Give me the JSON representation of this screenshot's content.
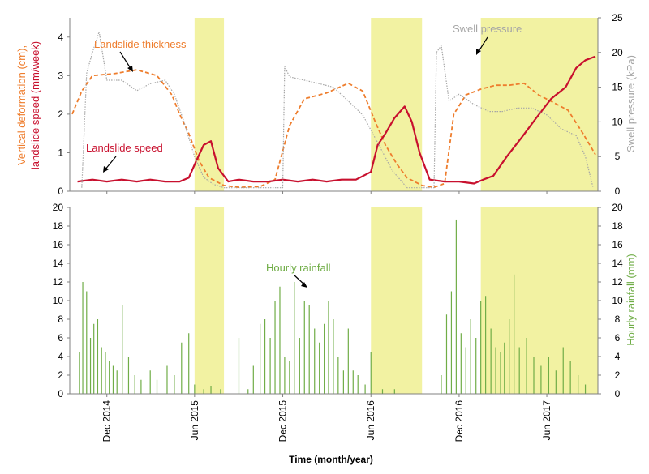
{
  "chart_data": [
    {
      "type": "line",
      "panel": "top",
      "xlabel": "Time (month/year)",
      "ylabel_left_part1": "Vertical deformation (cm),",
      "ylabel_left_part2": "landslide speed (mm/week)",
      "ylabel_right": "Swell pressure (kPa)",
      "ylim_left": [
        0,
        4.5
      ],
      "ylim_right": [
        0,
        25
      ],
      "yticks_left": [
        "0",
        "1",
        "2",
        "3",
        "4"
      ],
      "yticks_right": [
        "0",
        "5",
        "10",
        "15",
        "20",
        "25"
      ],
      "xticks": [
        "Dec 2014",
        "Jun 2015",
        "Dec 2015",
        "Jun 2016",
        "Dec 2016",
        "Jun 2017"
      ],
      "xtick_dates": [
        "2014-12-01",
        "2015-06-01",
        "2015-12-01",
        "2016-06-01",
        "2016-12-01",
        "2017-06-01"
      ],
      "xlim": [
        "2014-09-15",
        "2017-09-15"
      ],
      "shaded_periods": [
        [
          "2015-06-01",
          "2015-08-01"
        ],
        [
          "2016-06-01",
          "2016-09-15"
        ],
        [
          "2017-01-15",
          "2017-09-15"
        ]
      ],
      "shade_color": "#f2f2a2",
      "annotations": [
        "Landslide thickness",
        "Landslide speed",
        "Swell pressure"
      ],
      "series": [
        {
          "name": "Landslide thickness",
          "color": "#ee7d2d",
          "axis": "left",
          "style": "dashed",
          "x": [
            "2014-09-20",
            "2014-10-10",
            "2014-11-01",
            "2014-12-15",
            "2015-02-01",
            "2015-03-15",
            "2015-04-15",
            "2015-05-01",
            "2015-05-20",
            "2015-06-10",
            "2015-07-01",
            "2015-08-01",
            "2015-09-01",
            "2015-10-15",
            "2015-11-15",
            "2015-12-15",
            "2016-01-15",
            "2016-03-01",
            "2016-04-15",
            "2016-05-15",
            "2016-06-10",
            "2016-07-01",
            "2016-07-25",
            "2016-08-15",
            "2016-09-15",
            "2016-10-10",
            "2016-11-01",
            "2016-11-20",
            "2016-12-15",
            "2017-01-15",
            "2017-02-15",
            "2017-03-15",
            "2017-04-15",
            "2017-05-15",
            "2017-06-15",
            "2017-07-15",
            "2017-08-15",
            "2017-09-10"
          ],
          "y": [
            2.0,
            2.6,
            3.0,
            3.05,
            3.15,
            3.0,
            2.5,
            2.0,
            1.5,
            0.8,
            0.35,
            0.15,
            0.1,
            0.12,
            0.3,
            1.7,
            2.4,
            2.55,
            2.8,
            2.6,
            1.8,
            1.2,
            0.7,
            0.35,
            0.15,
            0.1,
            0.2,
            2.0,
            2.5,
            2.65,
            2.75,
            2.75,
            2.8,
            2.5,
            2.3,
            2.1,
            1.5,
            0.95
          ]
        },
        {
          "name": "Landslide speed",
          "color": "#c8102e",
          "axis": "left",
          "style": "solid",
          "x": [
            "2014-10-01",
            "2014-11-01",
            "2014-12-01",
            "2015-01-01",
            "2015-02-01",
            "2015-03-01",
            "2015-04-01",
            "2015-05-01",
            "2015-05-20",
            "2015-06-05",
            "2015-06-20",
            "2015-07-05",
            "2015-07-20",
            "2015-08-10",
            "2015-09-01",
            "2015-10-01",
            "2015-11-01",
            "2015-12-01",
            "2016-01-01",
            "2016-02-01",
            "2016-03-01",
            "2016-04-01",
            "2016-05-01",
            "2016-06-01",
            "2016-06-15",
            "2016-07-01",
            "2016-07-20",
            "2016-08-10",
            "2016-08-25",
            "2016-09-10",
            "2016-10-01",
            "2016-11-01",
            "2016-12-01",
            "2017-01-01",
            "2017-01-20",
            "2017-02-10",
            "2017-03-10",
            "2017-04-10",
            "2017-05-10",
            "2017-06-10",
            "2017-07-10",
            "2017-08-01",
            "2017-08-20",
            "2017-09-10"
          ],
          "y": [
            0.25,
            0.3,
            0.25,
            0.3,
            0.25,
            0.3,
            0.25,
            0.25,
            0.35,
            0.8,
            1.2,
            1.3,
            0.6,
            0.25,
            0.3,
            0.25,
            0.25,
            0.3,
            0.25,
            0.3,
            0.25,
            0.3,
            0.3,
            0.5,
            1.2,
            1.5,
            1.9,
            2.2,
            1.8,
            1.0,
            0.3,
            0.25,
            0.25,
            0.2,
            0.3,
            0.4,
            0.9,
            1.4,
            1.9,
            2.4,
            2.7,
            3.2,
            3.4,
            3.5
          ]
        },
        {
          "name": "Swell pressure",
          "color": "#a6a6a6",
          "axis": "right",
          "style": "dotted",
          "x": [
            "2014-10-10",
            "2014-10-20",
            "2014-11-01",
            "2014-11-15",
            "2014-12-01",
            "2015-01-01",
            "2015-02-01",
            "2015-03-01",
            "2015-04-01",
            "2015-04-20",
            "2015-05-10",
            "2015-06-01",
            "2015-06-20",
            "2015-07-10",
            "2015-08-01",
            "2015-10-01",
            "2015-12-01",
            "2015-12-05",
            "2015-12-15",
            "2016-01-15",
            "2016-02-15",
            "2016-03-15",
            "2016-04-15",
            "2016-05-15",
            "2016-06-15",
            "2016-07-15",
            "2016-08-15",
            "2016-09-10",
            "2016-09-25",
            "2016-10-10",
            "2016-10-15",
            "2016-10-25",
            "2016-11-10",
            "2016-12-01",
            "2017-01-01",
            "2017-02-01",
            "2017-03-01",
            "2017-04-01",
            "2017-05-01",
            "2017-06-01",
            "2017-07-01",
            "2017-08-01",
            "2017-08-20",
            "2017-09-05"
          ],
          "y": [
            0.5,
            17,
            20,
            23,
            16,
            16,
            14.5,
            15.5,
            16,
            14,
            10,
            5,
            2,
            1,
            0.5,
            0.5,
            0.5,
            18,
            16.5,
            16,
            15.5,
            15,
            13,
            11,
            7,
            3,
            0.5,
            0.5,
            0.5,
            0.5,
            20,
            21,
            13,
            14,
            12.5,
            11.5,
            11.5,
            12,
            12,
            11,
            9,
            8,
            5,
            0.5
          ]
        }
      ]
    },
    {
      "type": "bar",
      "panel": "bottom",
      "name": "Hourly rainfall",
      "ylabel_right": "Hourly rainfall (mm)",
      "color": "#70ad47",
      "ylim": [
        0,
        20
      ],
      "yticks": [
        "0",
        "2",
        "4",
        "6",
        "8",
        "10",
        "12",
        "14",
        "16",
        "18",
        "20"
      ],
      "annotations": [
        "Hourly rainfall"
      ],
      "x": [
        "2014-10-05",
        "2014-10-12",
        "2014-10-20",
        "2014-10-28",
        "2014-11-04",
        "2014-11-12",
        "2014-11-20",
        "2014-11-28",
        "2014-12-06",
        "2014-12-14",
        "2014-12-22",
        "2015-01-02",
        "2015-01-15",
        "2015-01-28",
        "2015-02-10",
        "2015-03-01",
        "2015-03-15",
        "2015-04-05",
        "2015-04-20",
        "2015-05-05",
        "2015-05-20",
        "2015-06-01",
        "2015-06-20",
        "2015-07-05",
        "2015-07-25",
        "2015-09-01",
        "2015-09-20",
        "2015-10-01",
        "2015-10-15",
        "2015-10-25",
        "2015-11-05",
        "2015-11-15",
        "2015-11-25",
        "2015-12-05",
        "2015-12-15",
        "2015-12-25",
        "2016-01-05",
        "2016-01-15",
        "2016-01-25",
        "2016-02-05",
        "2016-02-15",
        "2016-02-25",
        "2016-03-05",
        "2016-03-15",
        "2016-03-25",
        "2016-04-05",
        "2016-04-15",
        "2016-04-25",
        "2016-05-05",
        "2016-05-20",
        "2016-06-01",
        "2016-06-25",
        "2016-07-20",
        "2016-10-25",
        "2016-11-05",
        "2016-11-15",
        "2016-11-25",
        "2016-12-05",
        "2016-12-15",
        "2016-12-25",
        "2017-01-05",
        "2017-01-15",
        "2017-01-25",
        "2017-02-05",
        "2017-02-15",
        "2017-02-25",
        "2017-03-05",
        "2017-03-15",
        "2017-03-25",
        "2017-04-05",
        "2017-04-20",
        "2017-05-05",
        "2017-05-20",
        "2017-06-05",
        "2017-06-20",
        "2017-07-05",
        "2017-07-20",
        "2017-08-05",
        "2017-08-20"
      ],
      "values": [
        4.5,
        12,
        11,
        6,
        7.5,
        8,
        5,
        4.5,
        3.5,
        3,
        2.5,
        9.5,
        4,
        2,
        1.5,
        2.5,
        1.5,
        3,
        2,
        5.5,
        6.5,
        1,
        0.5,
        0.8,
        0.5,
        6,
        0.5,
        3,
        7.5,
        8,
        6,
        10,
        11.5,
        4,
        3.5,
        12,
        6,
        10,
        9.5,
        7,
        5.5,
        7.5,
        10,
        8,
        4,
        2.5,
        7,
        2.5,
        2,
        1,
        4.5,
        0.5,
        0.5,
        2,
        8.5,
        11,
        18.7,
        6.5,
        5,
        8,
        6,
        10,
        10.5,
        7,
        5,
        4.5,
        5.5,
        8,
        12.8,
        5,
        6,
        4,
        3,
        4,
        2.5,
        5,
        3.5,
        2,
        1
      ]
    }
  ]
}
